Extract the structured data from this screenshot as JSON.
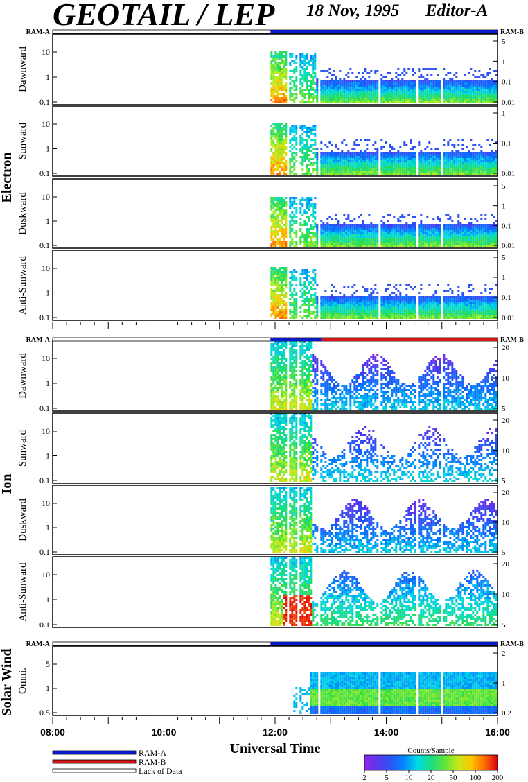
{
  "header": {
    "title": "GEOTAIL / LEP",
    "date": "18 Nov, 1995",
    "editor": "Editor-A"
  },
  "ram_labels": {
    "a": "RAM-A",
    "b": "RAM-B"
  },
  "group_labels": {
    "electron": "Electron",
    "ion": "Ion",
    "solar_wind": "Solar Wind"
  },
  "xaxis": {
    "title": "Universal Time",
    "ticks": [
      "08:00",
      "10:00",
      "12:00",
      "14:00",
      "16:00"
    ]
  },
  "legend": {
    "items": [
      {
        "label": "RAM-A",
        "color": "#0a1ac8"
      },
      {
        "label": "RAM-B",
        "color": "#d81414"
      },
      {
        "label": "Lack of Data",
        "color": "#ffffff"
      }
    ]
  },
  "colorbar": {
    "title": "Counts/Sample",
    "ticks": [
      "2",
      "5",
      "10",
      "20",
      "50",
      "100",
      "200"
    ]
  },
  "chart_data": {
    "type": "heatmap",
    "x_range": [
      "08:00",
      "16:00"
    ],
    "panels": [
      {
        "group": "Electron",
        "label": "Dawnward",
        "left_ticks": [
          "10",
          "1",
          "0.1"
        ],
        "right_ticks": [
          "5",
          "1",
          "0.1",
          "0.01"
        ],
        "kind": "electron"
      },
      {
        "group": "Electron",
        "label": "Sunward",
        "left_ticks": [
          "10",
          "1",
          "0.1"
        ],
        "right_ticks": [
          "1",
          "0.1",
          "0.01"
        ],
        "kind": "electron"
      },
      {
        "group": "Electron",
        "label": "Duskward",
        "left_ticks": [
          "10",
          "1",
          "0.1"
        ],
        "right_ticks": [
          "5",
          "1",
          "0.1",
          "0.01"
        ],
        "kind": "electron"
      },
      {
        "group": "Electron",
        "label": "Anti-Sunward",
        "left_ticks": [
          "10",
          "1",
          "0.1"
        ],
        "right_ticks": [
          "5",
          "1",
          "0.1",
          "0.01"
        ],
        "kind": "electron"
      },
      {
        "group": "Ion",
        "label": "Dawnward",
        "left_ticks": [
          "10",
          "1",
          "0.1"
        ],
        "right_ticks": [
          "20",
          "10",
          "5"
        ],
        "kind": "ion"
      },
      {
        "group": "Ion",
        "label": "Sunward",
        "left_ticks": [
          "10",
          "1",
          "0.1"
        ],
        "right_ticks": [
          "20",
          "10",
          "5"
        ],
        "kind": "ion"
      },
      {
        "group": "Ion",
        "label": "Duskward",
        "left_ticks": [
          "10",
          "1",
          "0.1"
        ],
        "right_ticks": [
          "20",
          "10",
          "5"
        ],
        "kind": "ion"
      },
      {
        "group": "Ion",
        "label": "Anti-Sunward",
        "left_ticks": [
          "10",
          "1",
          "0.1"
        ],
        "right_ticks": [
          "20",
          "10",
          "5"
        ],
        "kind": "ion"
      },
      {
        "group": "Solar Wind",
        "label": "Omni.",
        "left_ticks": [
          "5",
          "1",
          "0.5"
        ],
        "right_ticks": [
          "2",
          "1",
          "0.2"
        ],
        "kind": "sw"
      }
    ],
    "ram_bars": [
      {
        "group": "Electron",
        "segments": [
          {
            "from": "11:55",
            "to": "16:00",
            "mode": "RAM-A"
          }
        ]
      },
      {
        "group": "Ion",
        "segments": [
          {
            "from": "11:55",
            "to": "12:50",
            "mode": "RAM-A"
          },
          {
            "from": "12:50",
            "to": "16:00",
            "mode": "RAM-B"
          }
        ]
      },
      {
        "group": "Solar Wind",
        "segments": [
          {
            "from": "11:55",
            "to": "16:00",
            "mode": "RAM-A"
          }
        ]
      }
    ],
    "data_start": "11:55",
    "data_gaps": [
      "12:12",
      "12:22",
      "12:45",
      "13:50",
      "14:30",
      "14:58"
    ]
  }
}
